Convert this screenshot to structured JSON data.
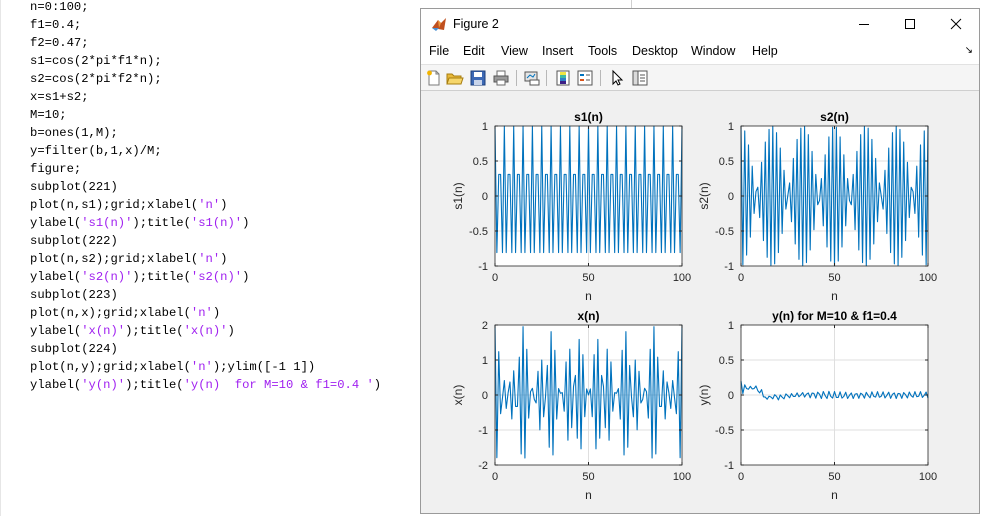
{
  "editor": {
    "lines": [
      {
        "parts": [
          {
            "t": "n=0:100;"
          }
        ]
      },
      {
        "parts": [
          {
            "t": "f1=0.4;"
          }
        ]
      },
      {
        "parts": [
          {
            "t": "f2=0.47;"
          }
        ]
      },
      {
        "parts": [
          {
            "t": "s1=cos(2*pi*f1*n);"
          }
        ]
      },
      {
        "parts": [
          {
            "t": "s2=cos(2*pi*f2*n);"
          }
        ]
      },
      {
        "parts": [
          {
            "t": "x=s1+s2;"
          }
        ]
      },
      {
        "parts": [
          {
            "t": "M=10;"
          }
        ]
      },
      {
        "parts": [
          {
            "t": "b=ones(1,M);"
          }
        ]
      },
      {
        "parts": [
          {
            "t": "y=filter(b,1,x)/M;"
          }
        ]
      },
      {
        "parts": [
          {
            "t": "figure;"
          }
        ]
      },
      {
        "parts": [
          {
            "t": "subplot(221)"
          }
        ]
      },
      {
        "parts": [
          {
            "t": "plot(n,s1);grid;xlabel("
          },
          {
            "t": "'n'",
            "s": true
          },
          {
            "t": ")"
          }
        ]
      },
      {
        "parts": [
          {
            "t": "ylabel("
          },
          {
            "t": "'s1(n)'",
            "s": true
          },
          {
            "t": ");title("
          },
          {
            "t": "'s1(n)'",
            "s": true
          },
          {
            "t": ")"
          }
        ]
      },
      {
        "parts": [
          {
            "t": "subplot(222)"
          }
        ]
      },
      {
        "parts": [
          {
            "t": "plot(n,s2);grid;xlabel("
          },
          {
            "t": "'n'",
            "s": true
          },
          {
            "t": ")"
          }
        ]
      },
      {
        "parts": [
          {
            "t": "ylabel("
          },
          {
            "t": "'s2(n)'",
            "s": true
          },
          {
            "t": ");title("
          },
          {
            "t": "'s2(n)'",
            "s": true
          },
          {
            "t": ")"
          }
        ]
      },
      {
        "parts": [
          {
            "t": "subplot(223)"
          }
        ]
      },
      {
        "parts": [
          {
            "t": "plot(n,x);grid;xlabel("
          },
          {
            "t": "'n'",
            "s": true
          },
          {
            "t": ")"
          }
        ]
      },
      {
        "parts": [
          {
            "t": "ylabel("
          },
          {
            "t": "'x(n)'",
            "s": true
          },
          {
            "t": ");title("
          },
          {
            "t": "'x(n)'",
            "s": true
          },
          {
            "t": ")"
          }
        ]
      },
      {
        "parts": [
          {
            "t": "subplot(224)"
          }
        ]
      },
      {
        "parts": [
          {
            "t": "plot(n,y);grid;xlabel("
          },
          {
            "t": "'n'",
            "s": true
          },
          {
            "t": ");ylim([-1 1])"
          }
        ]
      },
      {
        "parts": [
          {
            "t": "ylabel("
          },
          {
            "t": "'y(n)'",
            "s": true
          },
          {
            "t": ");title("
          },
          {
            "t": "'y(n)  for M=10 & f1=0.4 '",
            "s": true
          },
          {
            "t": ")"
          }
        ]
      }
    ]
  },
  "window": {
    "title": "Figure 2",
    "menu": [
      "File",
      "Edit",
      "View",
      "Insert",
      "Tools",
      "Desktop",
      "Window",
      "Help"
    ],
    "toolbar_icons": [
      "new-figure-icon",
      "open-file-icon",
      "save-icon",
      "print-icon",
      "link-plot-icon",
      "insert-colorbar-icon",
      "insert-legend-icon",
      "edit-plot-icon",
      "property-inspector-icon"
    ]
  },
  "colors": {
    "line": "#0072bd",
    "grid": "#dfdfdf",
    "axes_box": "#262626",
    "string_literal": "#a020f0"
  },
  "chart_data": [
    {
      "type": "line",
      "title": "s1(n)",
      "xlabel": "n",
      "ylabel": "s1(n)",
      "xlim": [
        0,
        100
      ],
      "ylim": [
        -1,
        1
      ],
      "grid": true,
      "xticks": [
        "0",
        "50",
        "100"
      ],
      "yticks": [
        "1",
        "0.5",
        "0",
        "-0.5",
        "-1"
      ],
      "series": [
        {
          "x_start": 0,
          "x_step": 1,
          "values": [
            1,
            -0.809,
            0.309,
            0.309,
            -0.809,
            1,
            -0.809,
            0.309,
            0.309,
            -0.809,
            1,
            -0.809,
            0.309,
            0.309,
            -0.809,
            1,
            -0.809,
            0.309,
            0.309,
            -0.809,
            1,
            -0.809,
            0.309,
            0.309,
            -0.809,
            1,
            -0.809,
            0.309,
            0.309,
            -0.809,
            1,
            -0.809,
            0.309,
            0.309,
            -0.809,
            1,
            -0.809,
            0.309,
            0.309,
            -0.809,
            1,
            -0.809,
            0.309,
            0.309,
            -0.809,
            1,
            -0.809,
            0.309,
            0.309,
            -0.809,
            1,
            -0.809,
            0.309,
            0.309,
            -0.809,
            1,
            -0.809,
            0.309,
            0.309,
            -0.809,
            1,
            -0.809,
            0.309,
            0.309,
            -0.809,
            1,
            -0.809,
            0.309,
            0.309,
            -0.809,
            1,
            -0.809,
            0.309,
            0.309,
            -0.809,
            1,
            -0.809,
            0.309,
            0.309,
            -0.809,
            1,
            -0.809,
            0.309,
            0.309,
            -0.809,
            1,
            -0.809,
            0.309,
            0.309,
            -0.809,
            1,
            -0.809,
            0.309,
            0.309,
            -0.809,
            1,
            -0.809,
            0.309,
            0.309,
            -0.809,
            1
          ]
        }
      ]
    },
    {
      "type": "line",
      "title": "s2(n)",
      "xlabel": "n",
      "ylabel": "s2(n)",
      "xlim": [
        0,
        100
      ],
      "ylim": [
        -1,
        1
      ],
      "grid": true,
      "xticks": [
        "0",
        "50",
        "100"
      ],
      "yticks": [
        "1",
        "0.5",
        "0",
        "-0.5",
        "-1"
      ],
      "series": [
        {
          "x_start": 0,
          "x_step": 1,
          "values": [
            1,
            -0.982,
            0.93,
            -0.844,
            0.729,
            -0.588,
            0.426,
            -0.249,
            0.063,
            0.125,
            -0.309,
            0.482,
            -0.637,
            0.771,
            -0.876,
            0.951,
            -0.992,
            0.998,
            -0.969,
            0.905,
            -0.809,
            0.685,
            -0.536,
            0.368,
            -0.187,
            0,
            0.187,
            -0.368,
            0.536,
            -0.685,
            0.809,
            -0.905,
            0.969,
            -0.998,
            0.992,
            -0.951,
            0.876,
            -0.771,
            0.637,
            -0.482,
            0.309,
            -0.125,
            -0.063,
            0.249,
            -0.426,
            0.588,
            -0.729,
            0.844,
            -0.93,
            0.982,
            -1,
            0.982,
            -0.93,
            0.844,
            -0.729,
            0.588,
            -0.426,
            0.249,
            -0.063,
            -0.125,
            0.309,
            -0.482,
            0.637,
            -0.771,
            0.876,
            -0.951,
            0.992,
            -0.998,
            0.969,
            -0.905,
            0.809,
            -0.685,
            0.536,
            -0.368,
            0.187,
            0,
            -0.187,
            0.368,
            -0.536,
            0.685,
            -0.809,
            0.905,
            -0.969,
            0.998,
            -0.992,
            0.951,
            -0.876,
            0.771,
            -0.637,
            0.482,
            -0.309,
            0.125,
            0.063,
            -0.249,
            0.426,
            -0.588,
            0.729,
            -0.844,
            0.93,
            -0.982,
            1
          ]
        }
      ]
    },
    {
      "type": "line",
      "title": "x(n)",
      "xlabel": "n",
      "ylabel": "x(n)",
      "xlim": [
        0,
        100
      ],
      "ylim": [
        -2,
        2
      ],
      "grid": true,
      "xticks": [
        "0",
        "50",
        "100"
      ],
      "yticks": [
        "2",
        "1",
        "0",
        "-1",
        "-2"
      ],
      "series": [
        {
          "x_start": 0,
          "x_step": 1,
          "values": [
            2,
            -1.791,
            1.239,
            -0.535,
            -0.08,
            0.412,
            -0.383,
            0.06,
            0.372,
            -0.684,
            0.691,
            -0.327,
            -0.328,
            1.08,
            -1.685,
            1.951,
            -1.801,
            1.307,
            -0.66,
            0.096,
            0.191,
            -0.124,
            -0.227,
            0.677,
            -0.996,
            1,
            -0.622,
            -0.059,
            0.845,
            -1.494,
            1.809,
            -1.714,
            1.278,
            -0.689,
            0.183,
            0.049,
            0.067,
            -0.462,
            0.946,
            -1.291,
            1.309,
            -0.934,
            0.246,
            0.558,
            -1.235,
            1.588,
            -1.538,
            1.153,
            -0.621,
            0.173,
            0,
            0.173,
            -0.621,
            1.153,
            -1.538,
            1.588,
            -1.235,
            0.558,
            0.246,
            -0.934,
            1.309,
            -1.291,
            0.946,
            -0.462,
            0.067,
            0.049,
            0.183,
            -0.689,
            1.278,
            -1.714,
            1.809,
            -1.494,
            0.845,
            -0.059,
            -0.622,
            1,
            -0.996,
            0.677,
            -0.227,
            -0.124,
            0.191,
            0.096,
            -0.66,
            1.307,
            -1.801,
            1.951,
            -1.685,
            1.08,
            -0.328,
            -0.327,
            0.691,
            -0.684,
            0.372,
            0.06,
            -0.383,
            0.412,
            -0.08,
            -0.535,
            1.239,
            -1.791,
            2
          ]
        }
      ]
    },
    {
      "type": "line",
      "title": "y(n) for M=10 & f1=0.4",
      "xlabel": "n",
      "ylabel": "y(n)",
      "xlim": [
        0,
        100
      ],
      "ylim": [
        -1,
        1
      ],
      "grid": true,
      "xticks": [
        "0",
        "50",
        "100"
      ],
      "yticks": [
        "1",
        "0.5",
        "0",
        "-0.5",
        "-1"
      ],
      "series": [
        {
          "x_start": 0,
          "x_step": 1,
          "values": [
            0.2,
            0.021,
            0.145,
            0.091,
            0.083,
            0.124,
            0.086,
            0.092,
            0.129,
            0.061,
            0.03,
            0.077,
            -0.026,
            -0.03,
            -0.061,
            -0.017,
            -0.029,
            -0.055,
            0.004,
            -0.02,
            -0.07,
            0.0,
            -0.03,
            -0.055,
            0.015,
            -0.01,
            -0.04,
            0.02,
            -0.02,
            -0.02,
            0.03,
            -0.025,
            0.0,
            0.035,
            -0.03,
            0.012,
            0.03,
            -0.04,
            0.028,
            0.022,
            -0.045,
            0.04,
            0.01,
            -0.05,
            0.05,
            -0.008,
            -0.05,
            0.052,
            -0.02,
            -0.044,
            0.05,
            -0.035,
            -0.035,
            0.045,
            -0.045,
            -0.02,
            0.04,
            -0.05,
            -0.005,
            0.03,
            -0.05,
            0.012,
            0.02,
            -0.048,
            0.025,
            0.008,
            -0.045,
            0.038,
            -0.008,
            -0.04,
            0.045,
            -0.02,
            -0.03,
            0.048,
            -0.032,
            -0.018,
            0.045,
            -0.042,
            -0.004,
            0.04,
            -0.048,
            0.01,
            0.03,
            -0.05,
            0.022,
            0.018,
            -0.048,
            0.035,
            0.004,
            -0.042,
            0.042,
            -0.01,
            -0.032,
            0.048,
            -0.024,
            -0.018,
            0.048,
            -0.035,
            -0.004,
            0.042,
            -0.045
          ]
        }
      ]
    }
  ]
}
